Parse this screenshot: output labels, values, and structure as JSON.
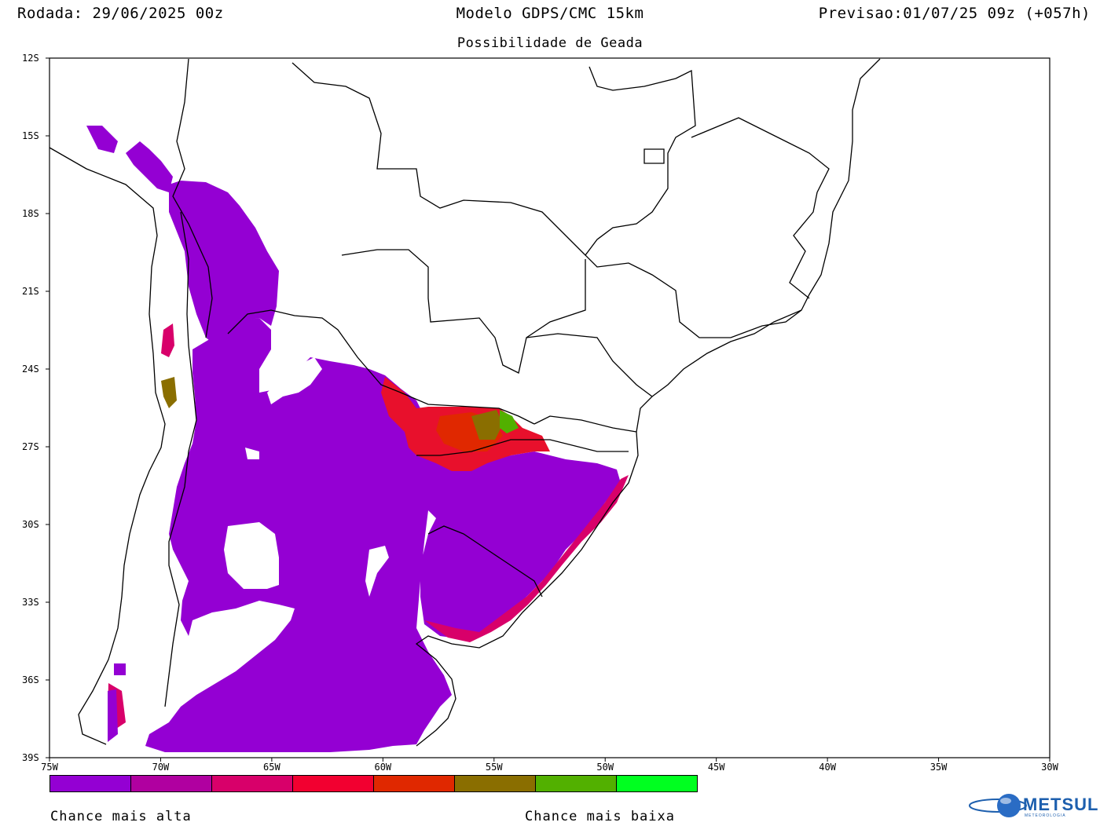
{
  "header": {
    "left": "Rodada: 29/06/2025 00z",
    "center": "Modelo GDPS/CMC 15km",
    "right": "Previsao:01/07/25 09z (+057h)"
  },
  "subtitle": "Possibilidade de Geada",
  "map": {
    "lat_labels": [
      "12S",
      "15S",
      "18S",
      "21S",
      "24S",
      "27S",
      "30S",
      "33S",
      "36S",
      "39S"
    ],
    "lon_labels": [
      "75W",
      "70W",
      "65W",
      "60W",
      "55W",
      "50W",
      "45W",
      "40W",
      "35W",
      "30W"
    ],
    "lat_range": [
      -39,
      -12
    ],
    "lon_range": [
      -75,
      -30
    ],
    "background": "#ffffff",
    "border_color": "#000000"
  },
  "legend": {
    "colors": [
      "#9400d3",
      "#b000a0",
      "#d8006a",
      "#f20030",
      "#e02800",
      "#8a6e00",
      "#52b000",
      "#00ff20"
    ],
    "label_high": "Chance mais alta",
    "label_low": "Chance mais baixa"
  },
  "logo": {
    "text": "METSUL",
    "subtext": "METEOROLOGIA",
    "color": "#1d5fae",
    "icon": "globe-icon"
  }
}
